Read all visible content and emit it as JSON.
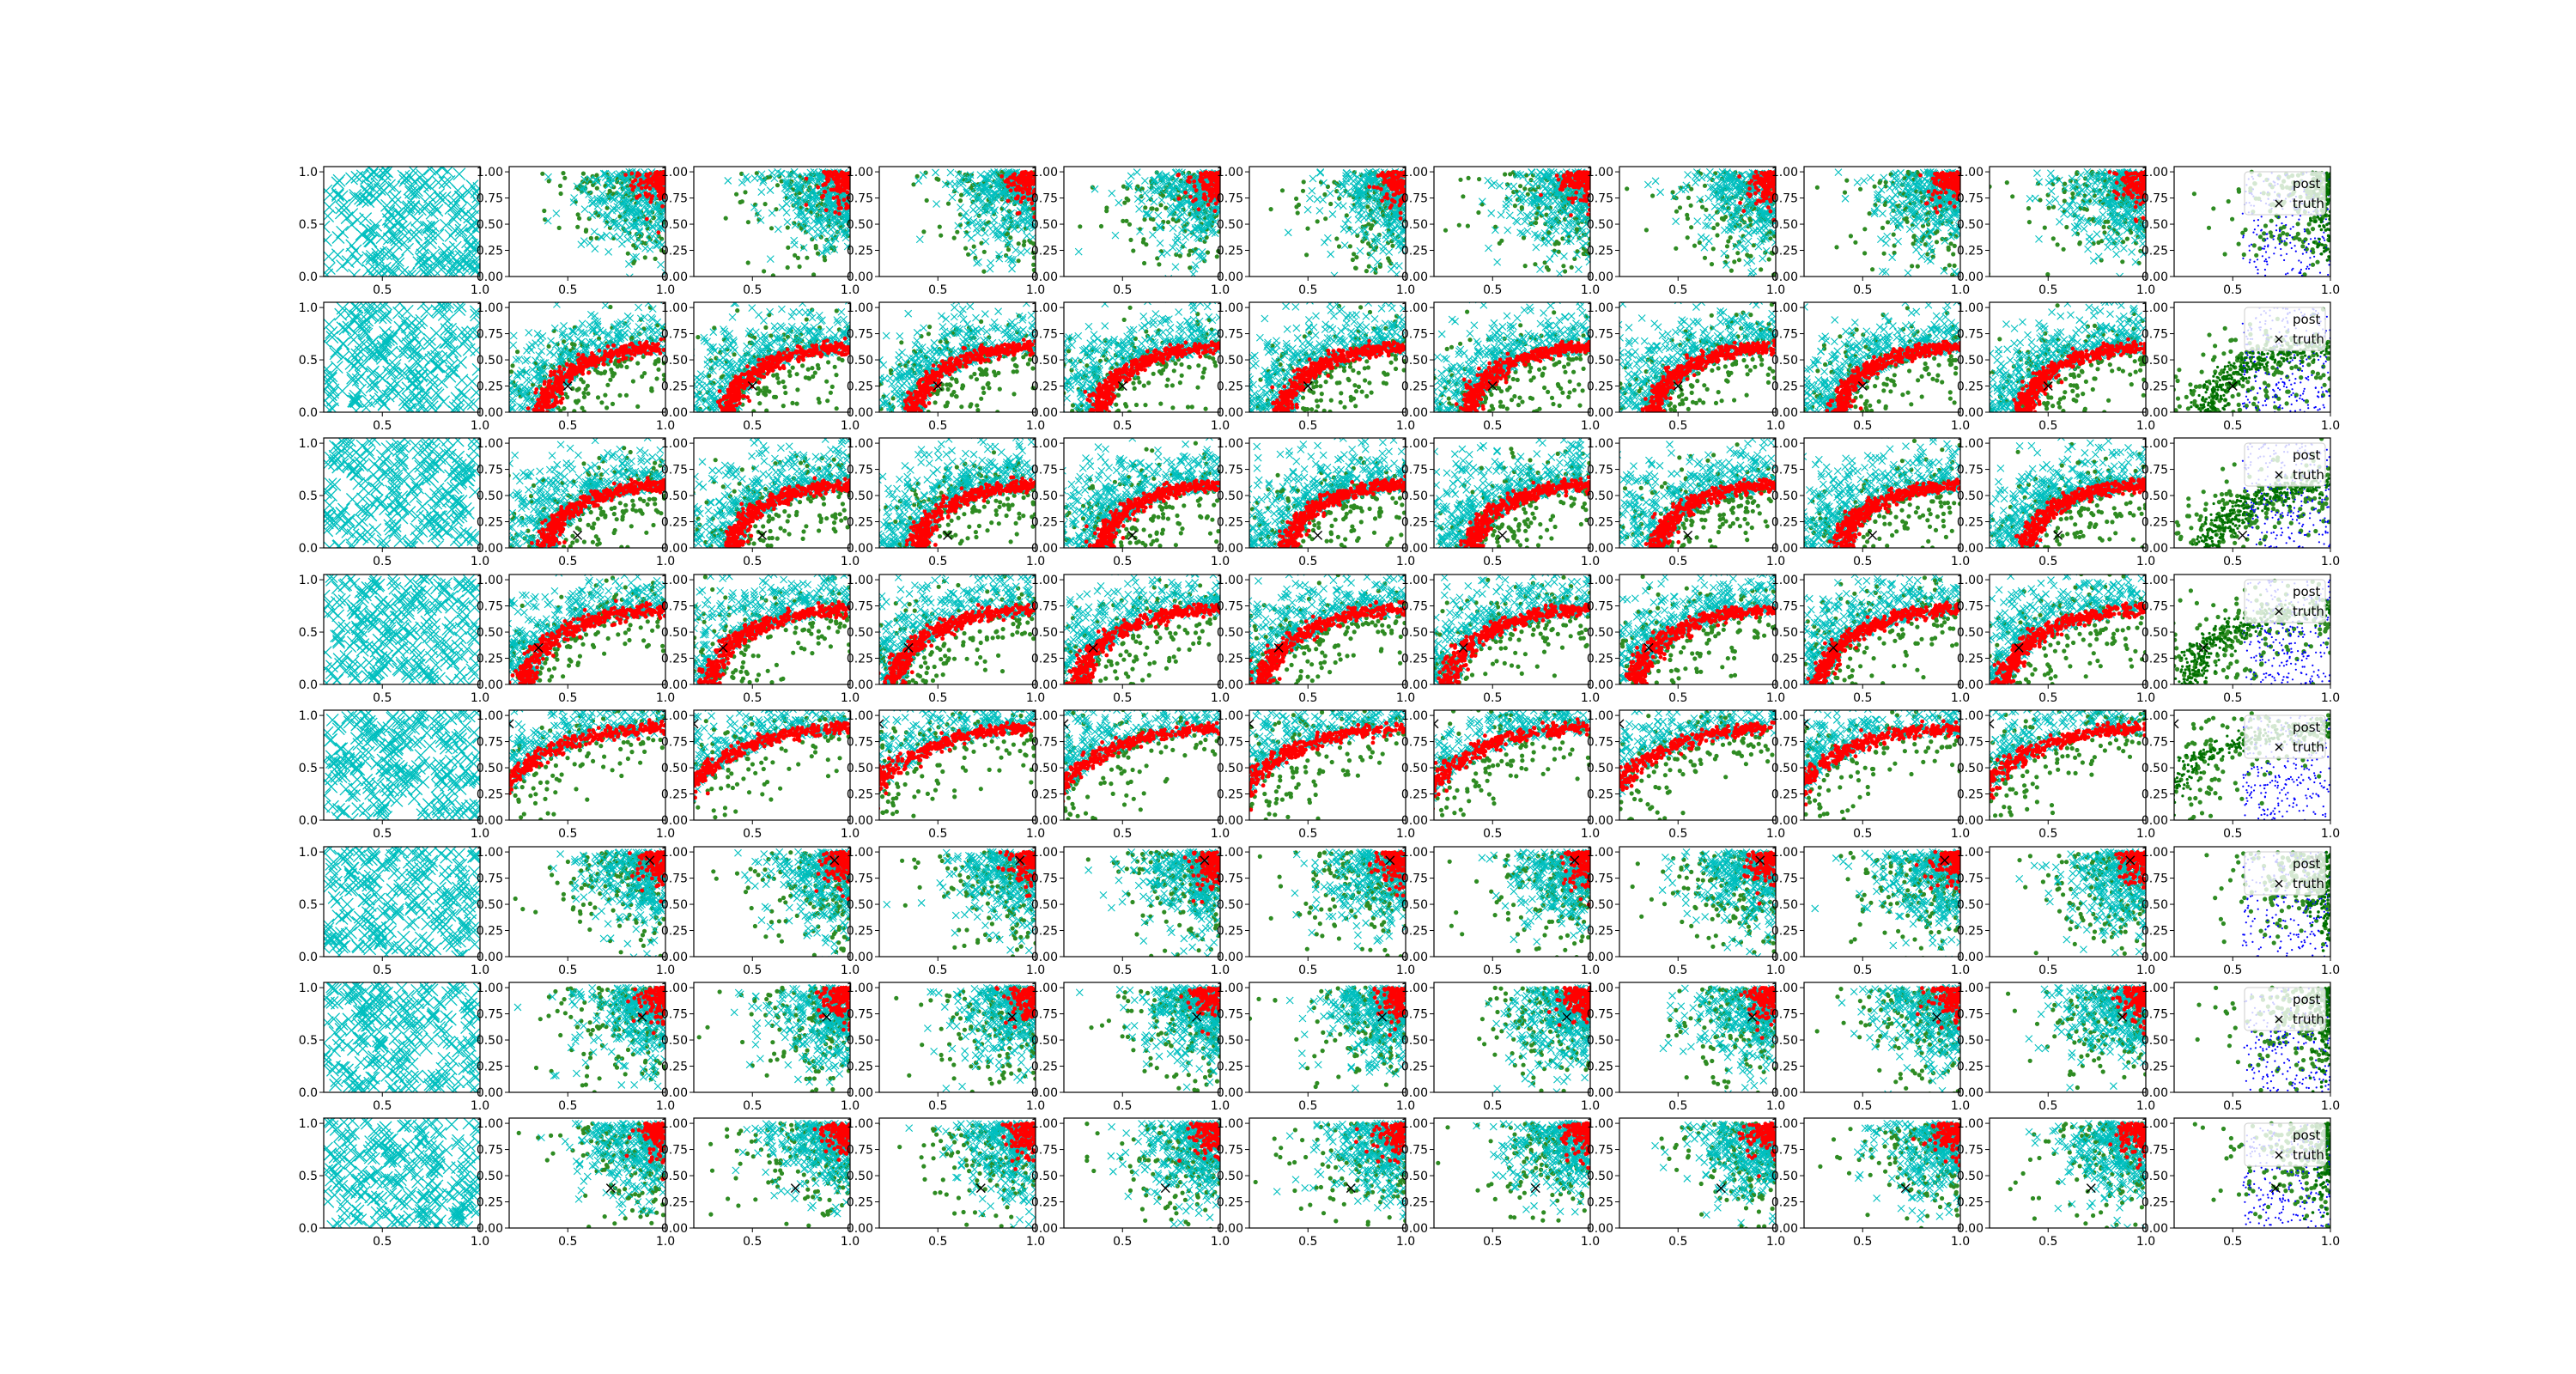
{
  "chart_data": {
    "type": "scatter",
    "layout": "grid of scatter subplots, 8 rows x 11 columns",
    "rows": 8,
    "cols": 11,
    "xlim": [
      0.2,
      1.0
    ],
    "ylim": [
      0.0,
      1.05
    ],
    "x_ticks": [
      0.5,
      1.0
    ],
    "x_tick_labels": [
      "0.5",
      "1.0"
    ],
    "y_ticks": [
      0.0,
      0.25,
      0.5,
      0.75,
      1.0
    ],
    "y_tick_labels_first_column": [
      "0.0",
      "0.5",
      "1.0"
    ],
    "y_tick_labels_other_columns": [
      "0.00",
      "0.25",
      "0.50",
      "0.75",
      "1.00"
    ],
    "grid": false,
    "legend": {
      "location": "top-right of last column",
      "entries": [
        {
          "label": "post",
          "marker": "none"
        },
        {
          "label": "truth",
          "marker": "x",
          "color": "#000000"
        }
      ]
    },
    "colors": {
      "cyan_x": "#00bfbf",
      "green_points": "#2e8b22",
      "dark_green_points": "#007000",
      "red_points": "#ff0000",
      "blue_points": "#0000ff",
      "truth_marker": "#000000"
    },
    "truth_points": [
      {
        "row": 1,
        "x": 0.5,
        "y": 0.25
      },
      {
        "row": 2,
        "x": 0.55,
        "y": 0.12
      },
      {
        "row": 3,
        "x": 0.35,
        "y": 0.35
      },
      {
        "row": 4,
        "x": 0.2,
        "y": 0.92
      },
      {
        "row": 5,
        "x": 0.92,
        "y": 0.92
      },
      {
        "row": 6,
        "x": 0.88,
        "y": 0.72
      },
      {
        "row": 7,
        "x": 0.72,
        "y": 0.38
      }
    ],
    "row_structure": [
      {
        "row": 0,
        "description": "cyan x-markers fill left plot; later columns show cyan/green clouds toward upper right with red concentrated at top-right"
      },
      {
        "row": 1,
        "description": "curved red band along a decreasing arc, cyan and green clouds around it"
      },
      {
        "row": 2,
        "description": "curved red band along a decreasing arc, cyan and green clouds around it"
      },
      {
        "row": 3,
        "description": "curved red band along a decreasing arc, cyan and green clouds around it"
      },
      {
        "row": 4,
        "description": "curved red band near the lower-left arc, cyan and green clouds around it"
      },
      {
        "row": 5,
        "description": "green and cyan clouds with red at top-right"
      },
      {
        "row": 6,
        "description": "green and cyan clouds with red at top-right"
      },
      {
        "row": 7,
        "description": "green and cyan clouds with red at top-right"
      }
    ]
  }
}
